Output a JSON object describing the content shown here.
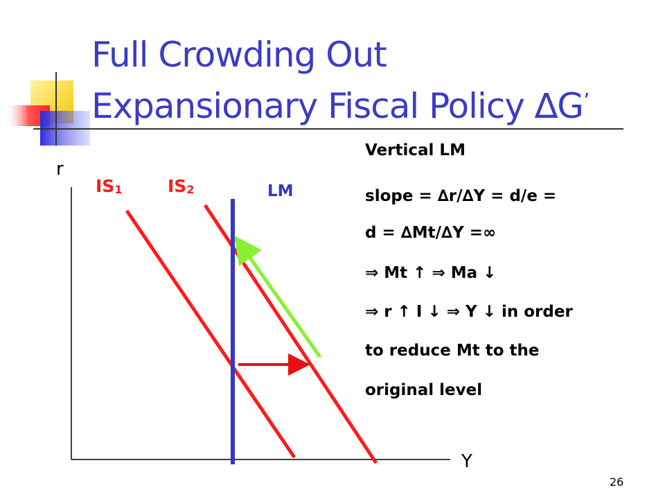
{
  "title": {
    "line1": "Full Crowding Out",
    "line2_text": "Expansionary Fiscal Policy ∆G",
    "line2_mark": "’"
  },
  "colors": {
    "title": "#3b3bc4",
    "is_curves": "#ff1a1a",
    "lm_curve": "#3535c8",
    "shift_arrow": "#e81010",
    "movement_arrow": "#88f030",
    "axes": "#000000"
  },
  "diagram": {
    "y_axis_label": "r",
    "x_axis_label": "Y",
    "is1": {
      "main": "IS",
      "sub": "1"
    },
    "is2": {
      "main": "IS",
      "sub": "2"
    },
    "lm_label": "LM"
  },
  "notes": [
    "Vertical LM",
    "slope =  ∆r/∆Y =  d/e =",
    "d = ∆Mt/∆Y  =∞",
    "⇒ Mt ↑ ⇒ Ma ↓",
    "⇒ r ↑ I ↓ ⇒ Y ↓ in order",
    " to reduce Mt to the",
    " original level"
  ],
  "page_number": "26"
}
